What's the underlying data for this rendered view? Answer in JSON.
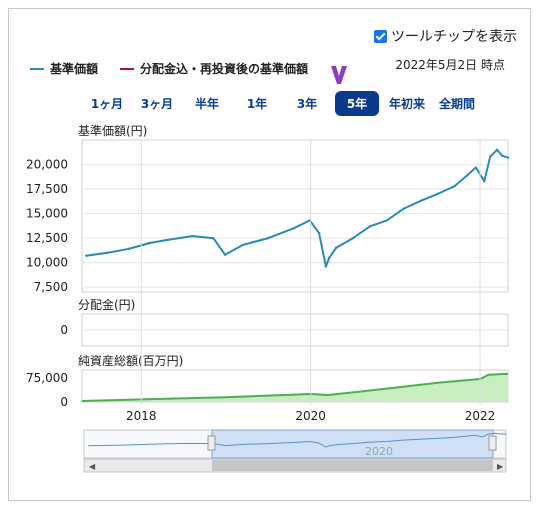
{
  "tooltip": {
    "label": "ツールチップを表示",
    "checked": true
  },
  "legend": [
    {
      "label": "基準価額",
      "color": "#2a8ab8"
    },
    {
      "label": "分配金込・再投資後の基準価額",
      "color": "#b0142a"
    }
  ],
  "as_of": "2022年5月2日 時点",
  "ranges": [
    "1ヶ月",
    "3ヶ月",
    "半年",
    "1年",
    "3年",
    "5年",
    "年初来",
    "全期間"
  ],
  "active_range": "5年",
  "panels": {
    "nav_label": "基準価額(円)",
    "dist_label": "分配金(円)",
    "assets_label": "純資産総額(百万円)"
  },
  "chart_data": [
    {
      "type": "line",
      "title": "基準価額(円)",
      "series": [
        {
          "name": "基準価額",
          "color": "#2a8ab8",
          "x": [
            2017.35,
            2017.6,
            2017.85,
            2018.1,
            2018.3,
            2018.6,
            2018.85,
            2018.99,
            2019.2,
            2019.5,
            2019.8,
            2019.99,
            2020.1,
            2020.18,
            2020.22,
            2020.3,
            2020.5,
            2020.7,
            2020.9,
            2021.1,
            2021.3,
            2021.5,
            2021.7,
            2021.85,
            2021.95,
            2022.05,
            2022.12,
            2022.2,
            2022.26,
            2022.33
          ],
          "values": [
            10700,
            11000,
            11400,
            12000,
            12300,
            12700,
            12500,
            10800,
            11800,
            12500,
            13500,
            14300,
            13000,
            9600,
            10500,
            11500,
            12500,
            13700,
            14300,
            15500,
            16300,
            17000,
            17800,
            18900,
            19700,
            18300,
            20800,
            21500,
            20900,
            20700
          ]
        }
      ],
      "yticks": [
        7500,
        10000,
        12500,
        15000,
        17500,
        20000
      ],
      "ylim": [
        7000,
        22500
      ],
      "xlim": [
        2017.3,
        2022.33
      ]
    },
    {
      "type": "line",
      "title": "分配金(円)",
      "series": [
        {
          "name": "分配金",
          "x": [
            2017.3,
            2022.33
          ],
          "values": [
            0,
            0
          ]
        }
      ],
      "yticks": [
        0
      ]
    },
    {
      "type": "area",
      "title": "純資産総額(百万円)",
      "series": [
        {
          "name": "純資産総額",
          "color": "#4caf50",
          "x": [
            2017.3,
            2018.0,
            2019.0,
            2020.0,
            2020.2,
            2020.5,
            2021.0,
            2021.5,
            2022.0,
            2022.1,
            2022.33
          ],
          "values": [
            3000,
            8000,
            15000,
            25000,
            22000,
            30000,
            45000,
            60000,
            72000,
            85000,
            88000
          ]
        }
      ],
      "yticks": [
        0,
        75000
      ],
      "ylim": [
        0,
        100000
      ],
      "xticks": [
        "2018",
        "2020",
        "2022"
      ]
    }
  ],
  "navigator": {
    "label": "2020"
  }
}
